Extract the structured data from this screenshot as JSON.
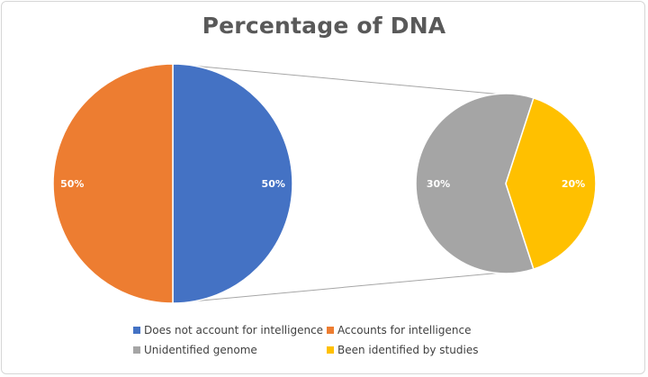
{
  "chart_data": {
    "type": "pie",
    "subtype": "pie-of-pie",
    "title": "Percentage of DNA",
    "main_pie": {
      "slices": [
        {
          "label": "Does not account for intelligence",
          "value": 50,
          "data_label": "50%",
          "color": "#4472C4"
        },
        {
          "label": "Accounts for intelligence",
          "value": 50,
          "data_label": "50%",
          "color": "#ED7D31"
        }
      ]
    },
    "secondary_pie": {
      "slices": [
        {
          "label": "Unidentified genome",
          "value": 30,
          "data_label": "30%",
          "color": "#A5A5A5"
        },
        {
          "label": "Been identified by studies",
          "value": 20,
          "data_label": "20%",
          "color": "#FFC000"
        }
      ]
    },
    "legend": {
      "placement": "bottom",
      "entries": [
        {
          "label": "Does not account for intelligence",
          "color": "#4472C4"
        },
        {
          "label": "Accounts for intelligence",
          "color": "#ED7D31"
        },
        {
          "label": "Unidentified genome",
          "color": "#A5A5A5"
        },
        {
          "label": "Been identified by studies",
          "color": "#FFC000"
        }
      ]
    }
  }
}
